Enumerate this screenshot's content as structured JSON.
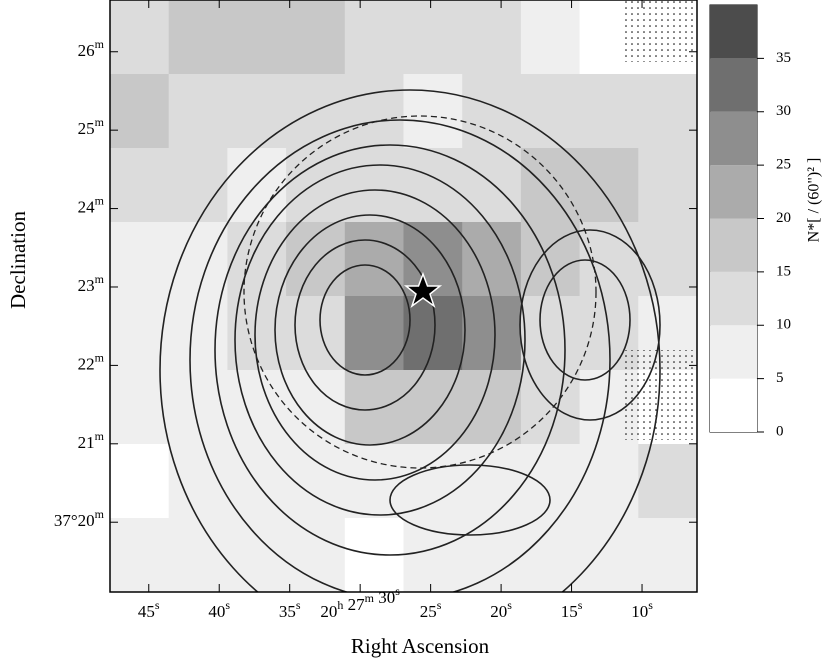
{
  "chart_data": {
    "type": "heatmap",
    "x_label": "Right Ascension",
    "y_label": "Declination",
    "colorbar_label": "N*[ / (60\")² ]",
    "xlim": [
      47.75,
      6.1
    ],
    "ylim": [
      19.11,
      26.66
    ],
    "xticks": [
      {
        "value": 45,
        "label": "45s"
      },
      {
        "value": 40,
        "label": "40s"
      },
      {
        "value": 35,
        "label": "35s"
      },
      {
        "value": 30,
        "label": "20h 27m 30s"
      },
      {
        "value": 25,
        "label": "25s"
      },
      {
        "value": 20,
        "label": "20s"
      },
      {
        "value": 15,
        "label": "15s"
      },
      {
        "value": 10,
        "label": "10s"
      }
    ],
    "yticks": [
      {
        "value": 26,
        "label": "26m"
      },
      {
        "value": 25,
        "label": "25m"
      },
      {
        "value": 24,
        "label": "24m"
      },
      {
        "value": 23,
        "label": "23m"
      },
      {
        "value": 22,
        "label": "22m"
      },
      {
        "value": 21,
        "label": "21m"
      },
      {
        "value": 20,
        "label": "37°20m"
      }
    ],
    "levels": [
      0,
      5,
      10,
      15,
      20,
      25,
      30,
      35,
      40
    ],
    "colors": [
      "#ffffff",
      "#efefef",
      "#dcdcdc",
      "#c8c8c8",
      "#ababab",
      "#8e8e8e",
      "#6f6f6f",
      "#4c4c4c"
    ],
    "cbticks": [
      0,
      5,
      10,
      15,
      20,
      25,
      30,
      35
    ],
    "z": [
      [
        12,
        15,
        18,
        17,
        13,
        12,
        10,
        8,
        4,
        2
      ],
      [
        17,
        13,
        12,
        14,
        10,
        9,
        12,
        10,
        12,
        10
      ],
      [
        13,
        10,
        9,
        12,
        14,
        12,
        10,
        17,
        16,
        14
      ],
      [
        8,
        8,
        12,
        18,
        20,
        25,
        22,
        16,
        12,
        12
      ],
      [
        6,
        7,
        10,
        13,
        27,
        32,
        28,
        14,
        10,
        8
      ],
      [
        5,
        5,
        7,
        9,
        15,
        18,
        15,
        10,
        7,
        2
      ],
      [
        4,
        5,
        6,
        7,
        7,
        8,
        7,
        7,
        8,
        10
      ],
      [
        7,
        8,
        6,
        5,
        4,
        5,
        6,
        8,
        7,
        5
      ]
    ]
  }
}
